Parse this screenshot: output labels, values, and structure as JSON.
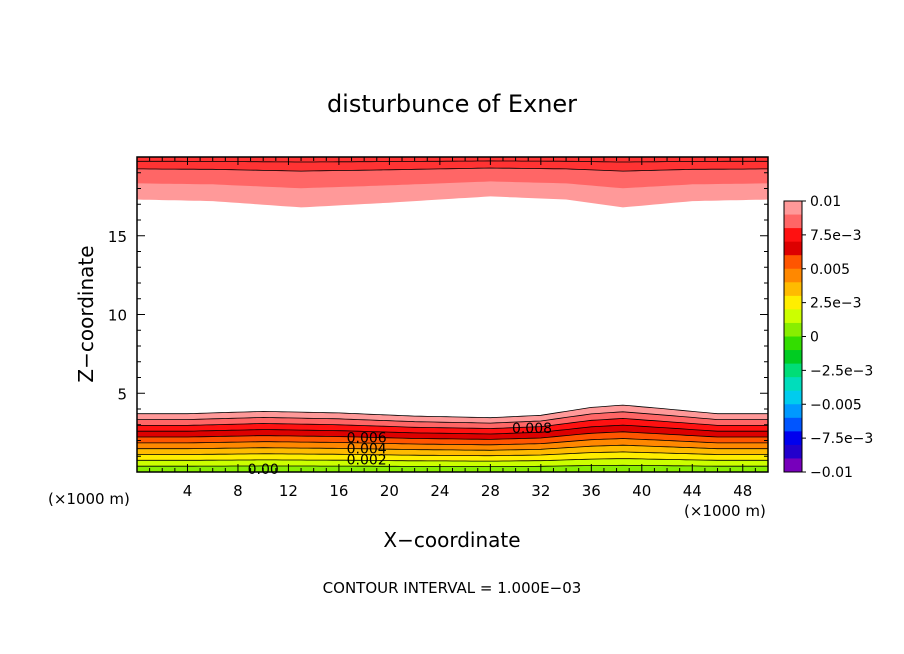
{
  "chart_data": {
    "type": "heatmap",
    "subtype": "filled-contour",
    "title": "disturbunce of Exner",
    "xlabel": "X−coordinate",
    "ylabel": "Z−coordinate",
    "x_unit_left": "(×1000 m)",
    "x_unit_right": "(×1000 m)",
    "footer": "CONTOUR INTERVAL = 1.000E−03",
    "xlim": [
      0,
      50
    ],
    "ylim": [
      0,
      20
    ],
    "x_ticks": [
      "4",
      "8",
      "12",
      "16",
      "20",
      "24",
      "28",
      "32",
      "36",
      "40",
      "44",
      "48"
    ],
    "x_tick_values": [
      4,
      8,
      12,
      16,
      20,
      24,
      28,
      32,
      36,
      40,
      44,
      48
    ],
    "y_ticks": [
      "5",
      "10",
      "15"
    ],
    "y_tick_values": [
      5,
      10,
      15
    ],
    "contour_interval": 0.001,
    "contour_labels": [
      {
        "text": "0.008",
        "x": 31.3,
        "y": 2.8
      },
      {
        "text": "0.006",
        "x": 18.2,
        "y": 2.2
      },
      {
        "text": "0.004",
        "x": 18.2,
        "y": 1.5
      },
      {
        "text": "0.002",
        "x": 18.2,
        "y": 0.8
      },
      {
        "text": "0.00",
        "x": 10.0,
        "y": 0.2
      }
    ],
    "bottom_layer": {
      "surface_value": 0.0,
      "gradient_per_km": 0.0026,
      "top_value": 0.01,
      "height_profile_km": [
        {
          "x": 0,
          "h": 3.7
        },
        {
          "x": 4,
          "h": 3.7
        },
        {
          "x": 10,
          "h": 3.85
        },
        {
          "x": 16,
          "h": 3.75
        },
        {
          "x": 22,
          "h": 3.55
        },
        {
          "x": 28,
          "h": 3.45
        },
        {
          "x": 32,
          "h": 3.6
        },
        {
          "x": 36,
          "h": 4.1
        },
        {
          "x": 38.5,
          "h": 4.25
        },
        {
          "x": 42,
          "h": 4.0
        },
        {
          "x": 46,
          "h": 3.7
        },
        {
          "x": 50,
          "h": 3.7
        }
      ]
    },
    "top_layer": {
      "lower_boundary_km": [
        {
          "x": 0,
          "z": 17.3
        },
        {
          "x": 6,
          "z": 17.2
        },
        {
          "x": 13,
          "z": 16.8
        },
        {
          "x": 20,
          "z": 17.1
        },
        {
          "x": 28,
          "z": 17.5
        },
        {
          "x": 34,
          "z": 17.3
        },
        {
          "x": 38.5,
          "z": 16.8
        },
        {
          "x": 44,
          "z": 17.2
        },
        {
          "x": 50,
          "z": 17.3
        }
      ],
      "band_offsets_km": [
        2.6,
        1.5
      ],
      "colors": [
        "#ff9999",
        "#ff6666",
        "#ff3333"
      ]
    },
    "colorbar": {
      "labels": [
        "0.01",
        "7.5e−3",
        "0.005",
        "2.5e−3",
        "0",
        "−2.5e−3",
        "−0.005",
        "−7.5e−3",
        "−0.01"
      ],
      "levels": [
        0.01,
        0.0075,
        0.005,
        0.0025,
        0,
        -0.0025,
        -0.005,
        -0.0075,
        -0.01
      ],
      "colors": [
        "#ff9999",
        "#ff6666",
        "#ff1111",
        "#dd0000",
        "#ff5500",
        "#ff8800",
        "#ffbb00",
        "#ffee00",
        "#ccff00",
        "#88ee00",
        "#33dd00",
        "#00cc22",
        "#00dd77",
        "#00ddbb",
        "#00ccee",
        "#0099ff",
        "#0055ff",
        "#0000ee",
        "#2200cc",
        "#7700bb"
      ]
    }
  }
}
